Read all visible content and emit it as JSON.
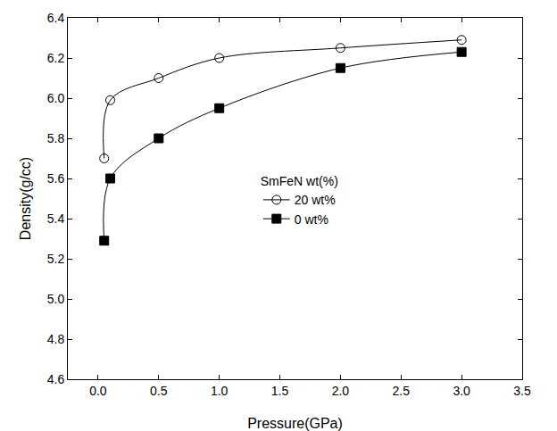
{
  "chart_data": {
    "type": "line",
    "x_label": "Pressure(GPa)",
    "y_label": "Density(g/cc)",
    "legend_title": "SmFeN wt(%)",
    "legend": "center",
    "grid": false,
    "series": [
      {
        "name": "20 wt%",
        "color": "#000000",
        "marker": "circle-open",
        "line_style": "spline",
        "x": [
          0.05,
          0.1,
          0.5,
          1.0,
          2.0,
          3.0
        ],
        "values": [
          5.7,
          5.99,
          6.1,
          6.2,
          6.25,
          6.29
        ]
      },
      {
        "name": "0 wt%",
        "color": "#000000",
        "marker": "square",
        "line_style": "spline",
        "x": [
          0.05,
          0.1,
          0.5,
          1.0,
          2.0,
          3.0
        ],
        "values": [
          5.29,
          5.6,
          5.8,
          5.95,
          6.15,
          6.23
        ]
      }
    ],
    "xlim": [
      -0.25,
      3.5
    ],
    "xticks": [
      {
        "value": 0,
        "label": "0.0"
      },
      0.5,
      {
        "value": 1,
        "label": "1.0"
      },
      1.5,
      {
        "value": 2,
        "label": "2.0"
      },
      2.5,
      {
        "value": 3,
        "label": "3.0"
      },
      3.5
    ],
    "ylim": [
      4.6,
      6.4
    ],
    "yticks": [
      4.6,
      4.8,
      {
        "value": 5,
        "label": "5.0"
      },
      5.2,
      5.4,
      5.6,
      5.8,
      {
        "value": 6,
        "label": "6.0"
      },
      6.2,
      6.4
    ]
  }
}
